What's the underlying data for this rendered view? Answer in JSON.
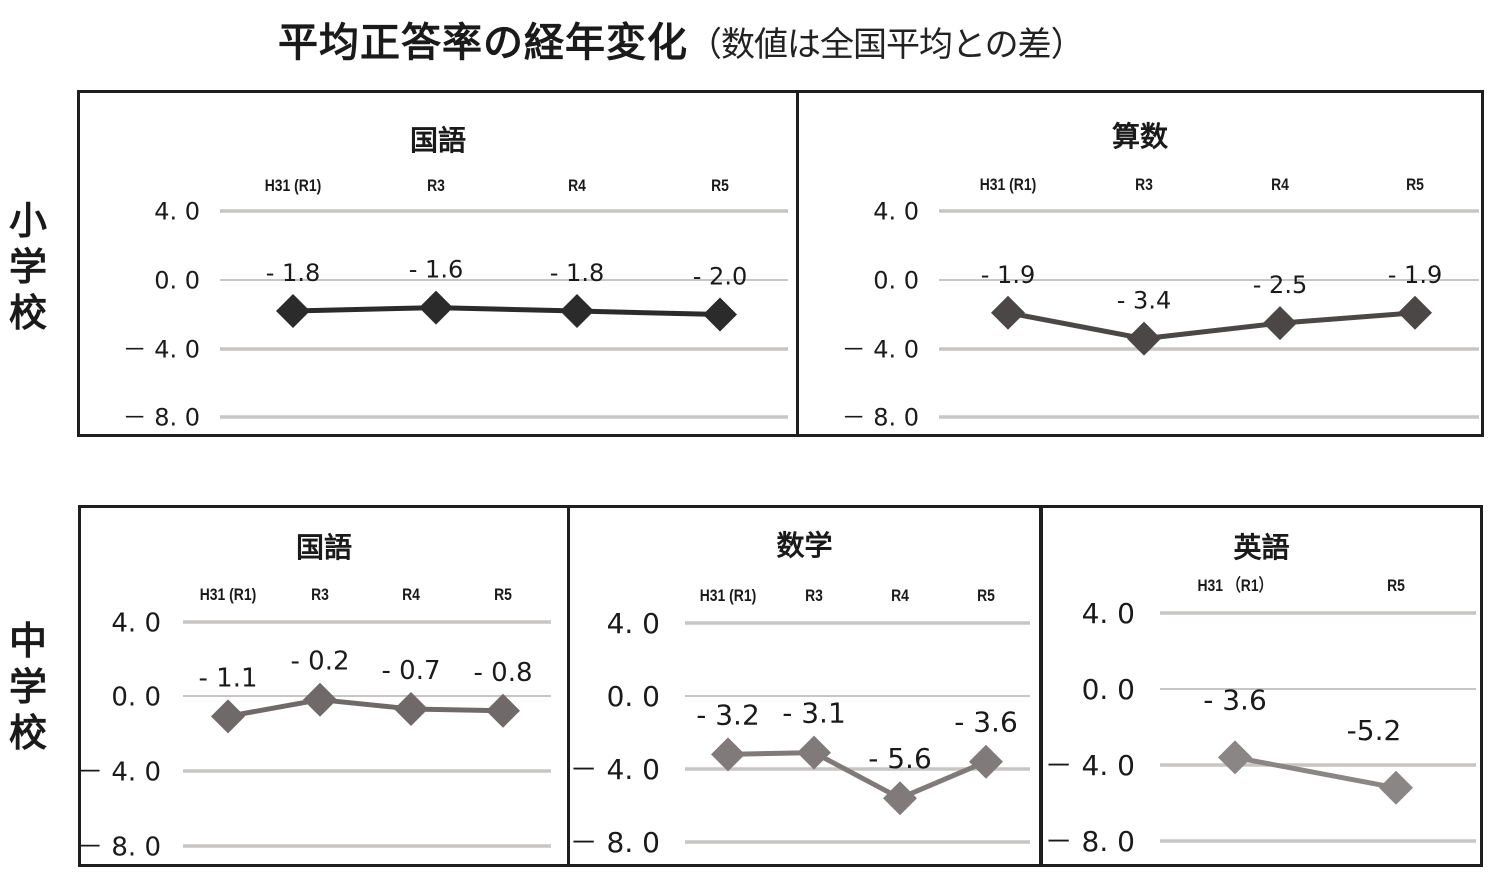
{
  "title": {
    "main": "平均正答率の経年変化",
    "sub": "（数値は全国平均との差）"
  },
  "rows": [
    {
      "label": "小学校"
    },
    {
      "label": "中学校"
    }
  ],
  "chart_data": [
    {
      "type": "line",
      "group": "小学校",
      "title": "国語",
      "categories": [
        "H31 (R1)",
        "R3",
        "R4",
        "R5"
      ],
      "values": [
        -1.8,
        -1.6,
        -1.8,
        -2.0
      ],
      "data_labels": [
        "- 1.8",
        "- 1.6",
        "- 1.8",
        "- 2.0"
      ],
      "yticks": [
        "4. 0",
        "0. 0",
        "－ 4. 0",
        "－ 8. 0"
      ],
      "ylim": [
        -8,
        4
      ],
      "grid": true,
      "marker": "diamond",
      "color": "#2b2b2b"
    },
    {
      "type": "line",
      "group": "小学校",
      "title": "算数",
      "categories": [
        "H31 (R1)",
        "R3",
        "R4",
        "R5"
      ],
      "values": [
        -1.9,
        -3.4,
        -2.5,
        -1.9
      ],
      "data_labels": [
        "- 1.9",
        "- 3.4",
        "- 2.5",
        "- 1.9"
      ],
      "yticks": [
        "4. 0",
        "0. 0",
        "－ 4. 0",
        "－ 8. 0"
      ],
      "ylim": [
        -8,
        4
      ],
      "grid": true,
      "marker": "diamond",
      "color": "#4a4746"
    },
    {
      "type": "line",
      "group": "中学校",
      "title": "国語",
      "categories": [
        "H31 (R1)",
        "R3",
        "R4",
        "R5"
      ],
      "values": [
        -1.1,
        -0.2,
        -0.7,
        -0.8
      ],
      "data_labels": [
        "- 1.1",
        "- 0.2",
        "- 0.7",
        "- 0.8"
      ],
      "yticks": [
        "4. 0",
        "0. 0",
        "－ 4. 0",
        "－ 8. 0"
      ],
      "ylim": [
        -8,
        4
      ],
      "grid": true,
      "marker": "diamond",
      "color": "#6f6a69"
    },
    {
      "type": "line",
      "group": "中学校",
      "title": "数学",
      "categories": [
        "H31 (R1)",
        "R3",
        "R4",
        "R5"
      ],
      "values": [
        -3.2,
        -3.1,
        -5.6,
        -3.6
      ],
      "data_labels": [
        "- 3.2",
        "- 3.1",
        "- 5.6",
        "- 3.6"
      ],
      "yticks": [
        "4. 0",
        "0. 0",
        "－ 4. 0",
        "－ 8. 0"
      ],
      "ylim": [
        -8,
        4
      ],
      "grid": true,
      "marker": "diamond",
      "color": "#807b7a"
    },
    {
      "type": "line",
      "group": "中学校",
      "title": "英語",
      "categories": [
        "H31 （R1）",
        "R5"
      ],
      "values": [
        -3.6,
        -5.2
      ],
      "data_labels": [
        "- 3.6",
        "-5.2"
      ],
      "yticks": [
        "4. 0",
        "0. 0",
        "－ 4. 0",
        "－ 8. 0"
      ],
      "ylim": [
        -8,
        4
      ],
      "grid": true,
      "marker": "diamond",
      "color": "#8a8685"
    }
  ],
  "colors": {
    "grid": "#c8c6c4",
    "frame": "#1e1e1e",
    "text": "#1a1a1a"
  }
}
